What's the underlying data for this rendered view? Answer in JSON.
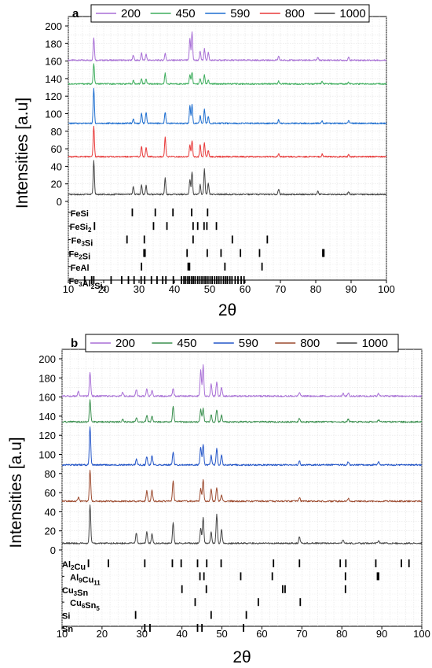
{
  "chart_data": [
    {
      "panel_label": "a",
      "type": "line",
      "xlabel": "2θ",
      "ylabel": "Intensities [a.u]",
      "xlim": [
        10,
        100
      ],
      "ylim": [
        0,
        200
      ],
      "x_ticks": [
        10,
        20,
        30,
        40,
        50,
        60,
        70,
        80,
        90,
        100
      ],
      "y_ticks": [
        0,
        20,
        40,
        60,
        80,
        100,
        120,
        140,
        160,
        180,
        200
      ],
      "grid": true,
      "legend_position": "top",
      "series": [
        {
          "name": "200",
          "color": "#a86fd6",
          "baseline": 161,
          "peaks": [
            [
              17.2,
              26
            ],
            [
              28.4,
              6
            ],
            [
              30.7,
              8
            ],
            [
              32.0,
              7
            ],
            [
              37.4,
              8
            ],
            [
              44.4,
              25
            ],
            [
              45.0,
              32
            ],
            [
              47.3,
              10
            ],
            [
              48.5,
              13
            ],
            [
              49.6,
              9
            ],
            [
              69.5,
              4
            ],
            [
              80.6,
              3
            ],
            [
              89.3,
              3
            ]
          ]
        },
        {
          "name": "450",
          "color": "#3fae5e",
          "baseline": 134,
          "peaks": [
            [
              17.2,
              23
            ],
            [
              28.4,
              4
            ],
            [
              30.7,
              6
            ],
            [
              32.0,
              6
            ],
            [
              37.4,
              12
            ],
            [
              44.4,
              11
            ],
            [
              45.0,
              13
            ],
            [
              47.3,
              6
            ],
            [
              48.5,
              10
            ],
            [
              49.6,
              4
            ],
            [
              69.5,
              3
            ],
            [
              81.8,
              3
            ],
            [
              89.3,
              2
            ]
          ]
        },
        {
          "name": "590",
          "color": "#1f6fd0",
          "baseline": 89,
          "peaks": [
            [
              17.2,
              40
            ],
            [
              28.4,
              5
            ],
            [
              30.7,
              12
            ],
            [
              32.0,
              13
            ],
            [
              37.4,
              13
            ],
            [
              44.4,
              20
            ],
            [
              45.0,
              21
            ],
            [
              47.3,
              9
            ],
            [
              48.5,
              16
            ],
            [
              49.6,
              8
            ],
            [
              69.5,
              4
            ],
            [
              81.8,
              3
            ],
            [
              89.3,
              3
            ]
          ]
        },
        {
          "name": "800",
          "color": "#e83a3a",
          "baseline": 51,
          "peaks": [
            [
              17.2,
              35
            ],
            [
              30.7,
              12
            ],
            [
              32.0,
              11
            ],
            [
              37.4,
              22
            ],
            [
              44.4,
              13
            ],
            [
              45.0,
              18
            ],
            [
              47.3,
              14
            ],
            [
              48.5,
              16
            ],
            [
              49.6,
              7
            ],
            [
              69.5,
              4
            ],
            [
              81.8,
              3
            ],
            [
              89.3,
              3
            ]
          ]
        },
        {
          "name": "1000",
          "color": "#444444",
          "baseline": 8,
          "peaks": [
            [
              17.2,
              38
            ],
            [
              28.4,
              9
            ],
            [
              30.7,
              11
            ],
            [
              32.0,
              10
            ],
            [
              37.4,
              19
            ],
            [
              44.4,
              17
            ],
            [
              45.0,
              26
            ],
            [
              47.3,
              12
            ],
            [
              48.5,
              29
            ],
            [
              49.6,
              13
            ],
            [
              69.5,
              6
            ],
            [
              80.6,
              4
            ],
            [
              89.3,
              3
            ]
          ]
        }
      ],
      "reference_phases": [
        {
          "label": "FeSi",
          "label_x": 10.6,
          "positions": [
            28.1,
            34.6,
            39.6,
            44.9,
            49.4
          ]
        },
        {
          "label": "FeSi2",
          "label_x": 10.4,
          "positions": [
            17.4,
            34.1,
            37.9,
            45.3,
            46.6,
            48.4,
            49.2,
            51.9
          ]
        },
        {
          "label": "Fe3Si",
          "label_x": 10.8,
          "positions": [
            26.6,
            31.5,
            45.3,
            56.4,
            66.3
          ]
        },
        {
          "label": "Fe2Si",
          "label_x": 10.1,
          "positions": [
            31.4,
            31.7,
            43.6,
            49.3,
            53.2,
            58.7,
            64.1,
            82.0,
            82.3
          ]
        },
        {
          "label": "FeAl",
          "label_x": 10.6,
          "positions": [
            30.7,
            43.9,
            44.3,
            54.3,
            64.8
          ]
        },
        {
          "label": "Fe3Al2Si3",
          "label_x": 10.1,
          "positions": [
            14.6,
            16.6,
            17.2,
            22.1,
            25.1,
            27.0,
            28.6,
            30.6,
            31.6,
            33.5,
            35.1,
            36.7,
            37.6,
            39.7,
            42.0,
            42.7,
            43.2,
            43.8,
            44.3,
            44.9,
            45.4,
            45.9,
            46.6,
            47.2,
            47.8,
            48.4,
            48.9,
            49.5,
            50.1,
            50.7,
            51.4,
            52.0,
            52.6,
            53.2,
            53.9,
            54.5,
            55.0,
            55.7,
            56.3,
            57.2,
            58.0,
            58.9,
            59.7
          ]
        }
      ]
    },
    {
      "panel_label": "b",
      "type": "line",
      "xlabel": "2θ",
      "ylabel": "Intensities [a.u]",
      "xlim": [
        10,
        100
      ],
      "ylim": [
        0,
        200
      ],
      "x_ticks": [
        10,
        20,
        30,
        40,
        50,
        60,
        70,
        80,
        90,
        100
      ],
      "y_ticks": [
        0,
        20,
        40,
        60,
        80,
        100,
        120,
        140,
        160,
        180,
        200
      ],
      "grid": true,
      "legend_position": "top",
      "series": [
        {
          "name": "200",
          "color": "#a86fd6",
          "baseline": 161,
          "peaks": [
            [
              14.1,
              5
            ],
            [
              17.0,
              25
            ],
            [
              25.2,
              4
            ],
            [
              28.6,
              7
            ],
            [
              31.2,
              7
            ],
            [
              32.5,
              6
            ],
            [
              37.8,
              8
            ],
            [
              44.7,
              27
            ],
            [
              45.3,
              32
            ],
            [
              47.3,
              13
            ],
            [
              48.7,
              15
            ],
            [
              49.9,
              9
            ],
            [
              69.4,
              4
            ],
            [
              80.3,
              3
            ],
            [
              81.6,
              3
            ],
            [
              89.2,
              3
            ]
          ]
        },
        {
          "name": "450",
          "color": "#3a8f4e",
          "baseline": 134,
          "peaks": [
            [
              17.0,
              23
            ],
            [
              25.2,
              3
            ],
            [
              28.6,
              5
            ],
            [
              31.2,
              7
            ],
            [
              32.5,
              6
            ],
            [
              37.8,
              17
            ],
            [
              44.7,
              13
            ],
            [
              45.3,
              14
            ],
            [
              47.3,
              8
            ],
            [
              48.7,
              13
            ],
            [
              49.9,
              7
            ],
            [
              69.4,
              4
            ],
            [
              81.6,
              3
            ],
            [
              89.2,
              2
            ]
          ]
        },
        {
          "name": "590",
          "color": "#2456c8",
          "baseline": 89,
          "peaks": [
            [
              17.0,
              40
            ],
            [
              28.6,
              6
            ],
            [
              31.2,
              9
            ],
            [
              32.5,
              10
            ],
            [
              37.8,
              14
            ],
            [
              44.7,
              19
            ],
            [
              45.3,
              22
            ],
            [
              47.3,
              10
            ],
            [
              48.7,
              17
            ],
            [
              49.9,
              11
            ],
            [
              69.4,
              4
            ],
            [
              81.6,
              3
            ],
            [
              89.2,
              3
            ]
          ]
        },
        {
          "name": "800",
          "color": "#9c4a2e",
          "baseline": 51,
          "peaks": [
            [
              14.1,
              4
            ],
            [
              17.0,
              33
            ],
            [
              31.2,
              11
            ],
            [
              32.5,
              12
            ],
            [
              37.8,
              21
            ],
            [
              44.7,
              13
            ],
            [
              45.3,
              23
            ],
            [
              47.3,
              13
            ],
            [
              48.7,
              14
            ],
            [
              49.9,
              7
            ],
            [
              69.4,
              4
            ],
            [
              81.6,
              3
            ]
          ]
        },
        {
          "name": "1000",
          "color": "#444444",
          "baseline": 7,
          "peaks": [
            [
              17.0,
              40
            ],
            [
              28.6,
              11
            ],
            [
              31.2,
              12
            ],
            [
              32.5,
              10
            ],
            [
              37.8,
              21
            ],
            [
              44.7,
              16
            ],
            [
              45.3,
              27
            ],
            [
              47.3,
              12
            ],
            [
              48.7,
              30
            ],
            [
              49.9,
              15
            ],
            [
              69.4,
              7
            ],
            [
              80.3,
              4
            ],
            [
              89.2,
              3
            ]
          ]
        }
      ],
      "reference_phases": [
        {
          "label": "Al2Cu",
          "label_x": 10.0,
          "positions": [
            16.6,
            21.6,
            30.7,
            37.6,
            39.8,
            43.9,
            46.2,
            49.8,
            62.9,
            69.4,
            79.6,
            81.0,
            88.5,
            94.9,
            96.8
          ]
        },
        {
          "label": "Al9Cu11",
          "label_x": 12.0,
          "positions": [
            44.5,
            45.5,
            54.7,
            62.6,
            80.9,
            88.9,
            89.2
          ]
        },
        {
          "label": "Cu3Sn",
          "label_x": 10.0,
          "positions": [
            40.0,
            46.1,
            65.2,
            65.8,
            80.9
          ]
        },
        {
          "label": "Cu6Sn5",
          "label_x": 12.0,
          "positions": [
            43.3,
            59.1,
            69.6
          ]
        },
        {
          "label": "Si",
          "label_x": 10.0,
          "positions": [
            28.4,
            47.3,
            56.1
          ]
        },
        {
          "label": "Sn",
          "label_x": 10.0,
          "positions": [
            30.7,
            32.0,
            43.9,
            45.0,
            55.4
          ]
        }
      ]
    }
  ]
}
